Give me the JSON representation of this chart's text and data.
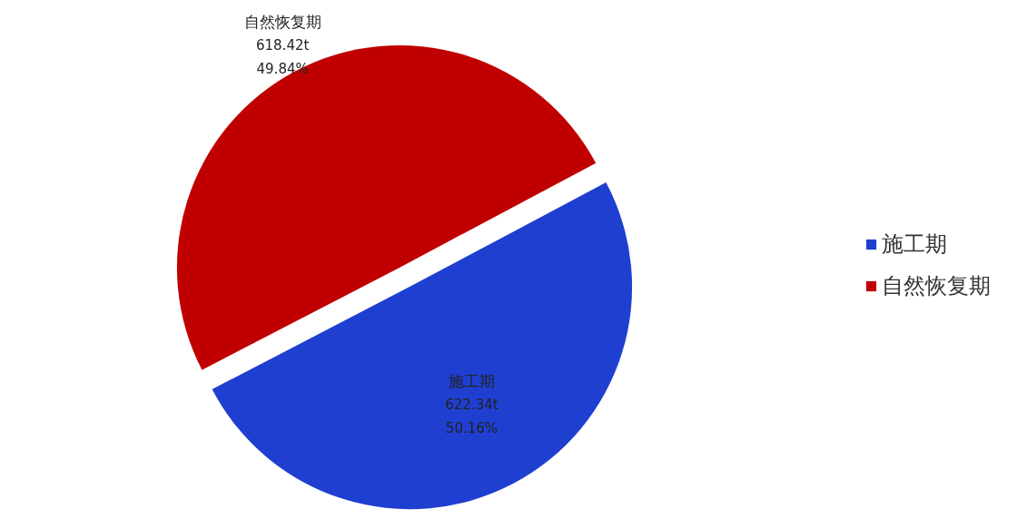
{
  "chart_data": {
    "type": "pie",
    "categories": [
      "施工期",
      "自然恢复期"
    ],
    "values": [
      50.16,
      49.84
    ],
    "colors": [
      "#1f3fd1",
      "#c00000"
    ],
    "value_labels": [
      "50.16%",
      "49.84%"
    ],
    "annotations": [
      "622.34t",
      "618.42t"
    ],
    "legend": "right"
  }
}
